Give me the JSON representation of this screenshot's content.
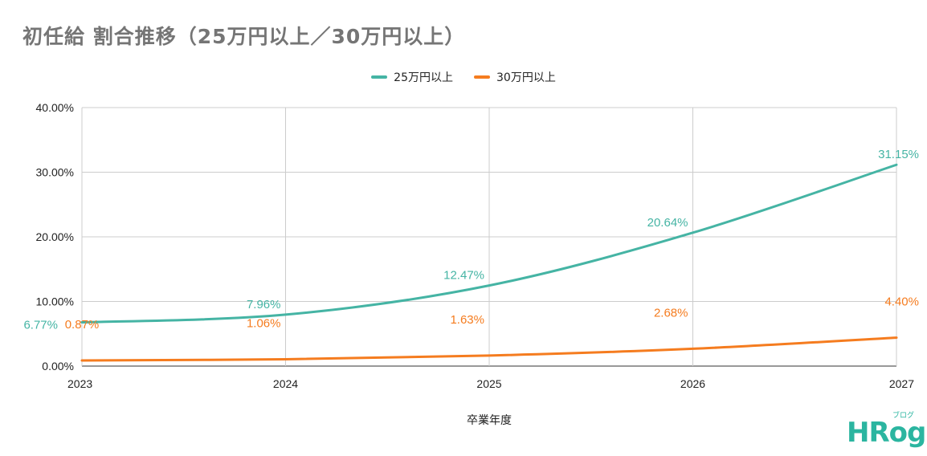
{
  "chart_data": {
    "type": "line",
    "title": "初任給 割合推移（25万円以上／30万円以上）",
    "xlabel": "卒業年度",
    "ylabel": "",
    "categories": [
      "2023",
      "2024",
      "2025",
      "2026",
      "2027"
    ],
    "ylim": [
      0,
      40
    ],
    "yticks": [
      "0.00%",
      "10.00%",
      "20.00%",
      "30.00%",
      "40.00%"
    ],
    "grid": true,
    "legend_position": "top",
    "series": [
      {
        "name": "25万円以上",
        "color": "#45b4a4",
        "values": [
          6.77,
          7.96,
          12.47,
          20.64,
          31.15
        ],
        "labels": [
          "6.77%",
          "7.96%",
          "12.47%",
          "20.64%",
          "31.15%"
        ]
      },
      {
        "name": "30万円以上",
        "color": "#f57c1f",
        "values": [
          0.87,
          1.06,
          1.63,
          2.68,
          4.4
        ],
        "labels": [
          "0.87%",
          "1.06%",
          "1.63%",
          "2.68%",
          "4.40%"
        ]
      }
    ]
  },
  "logo": {
    "main": "HRog",
    "sub": "ブログ"
  }
}
